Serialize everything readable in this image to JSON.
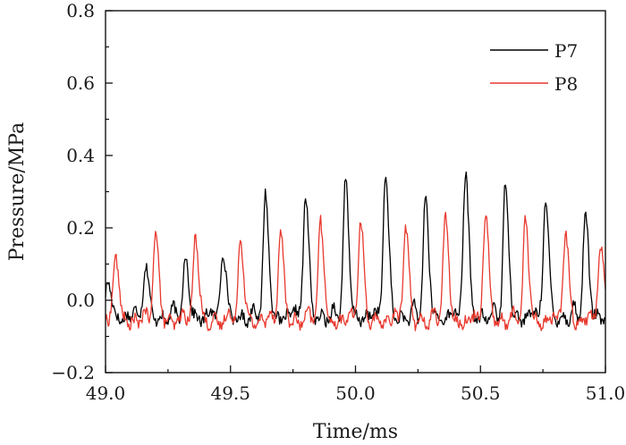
{
  "chart_data": {
    "type": "line",
    "title": "",
    "xlabel": "Time/ms",
    "ylabel": "Pressure/MPa",
    "xlim": [
      49.0,
      51.0
    ],
    "ylim": [
      -0.2,
      0.8
    ],
    "xticks": [
      "49.0",
      "49.5",
      "50.0",
      "50.5",
      "51.0"
    ],
    "yticks": [
      "−0.2",
      "0.0",
      "0.2",
      "0.4",
      "0.6",
      "0.8"
    ],
    "grid": false,
    "legend_position": "top-right",
    "series": [
      {
        "name": "P7",
        "color": "#000000",
        "baseline": -0.05,
        "peaks": [
          {
            "t": 49.01,
            "v": 0.06
          },
          {
            "t": 49.16,
            "v": 0.1
          },
          {
            "t": 49.32,
            "v": 0.12
          },
          {
            "t": 49.47,
            "v": 0.14
          },
          {
            "t": 49.64,
            "v": 0.29
          },
          {
            "t": 49.8,
            "v": 0.29
          },
          {
            "t": 49.96,
            "v": 0.33
          },
          {
            "t": 50.12,
            "v": 0.35
          },
          {
            "t": 50.28,
            "v": 0.28
          },
          {
            "t": 50.44,
            "v": 0.36
          },
          {
            "t": 50.6,
            "v": 0.32
          },
          {
            "t": 50.76,
            "v": 0.28
          },
          {
            "t": 50.92,
            "v": 0.24
          }
        ]
      },
      {
        "name": "P8",
        "color": "#e8392e",
        "baseline": -0.06,
        "peaks": [
          {
            "t": 49.04,
            "v": 0.13
          },
          {
            "t": 49.2,
            "v": 0.19
          },
          {
            "t": 49.36,
            "v": 0.18
          },
          {
            "t": 49.54,
            "v": 0.17
          },
          {
            "t": 49.7,
            "v": 0.19
          },
          {
            "t": 49.86,
            "v": 0.22
          },
          {
            "t": 50.02,
            "v": 0.22
          },
          {
            "t": 50.2,
            "v": 0.21
          },
          {
            "t": 50.36,
            "v": 0.24
          },
          {
            "t": 50.52,
            "v": 0.25
          },
          {
            "t": 50.68,
            "v": 0.22
          },
          {
            "t": 50.84,
            "v": 0.19
          },
          {
            "t": 50.98,
            "v": 0.16
          }
        ]
      }
    ]
  }
}
